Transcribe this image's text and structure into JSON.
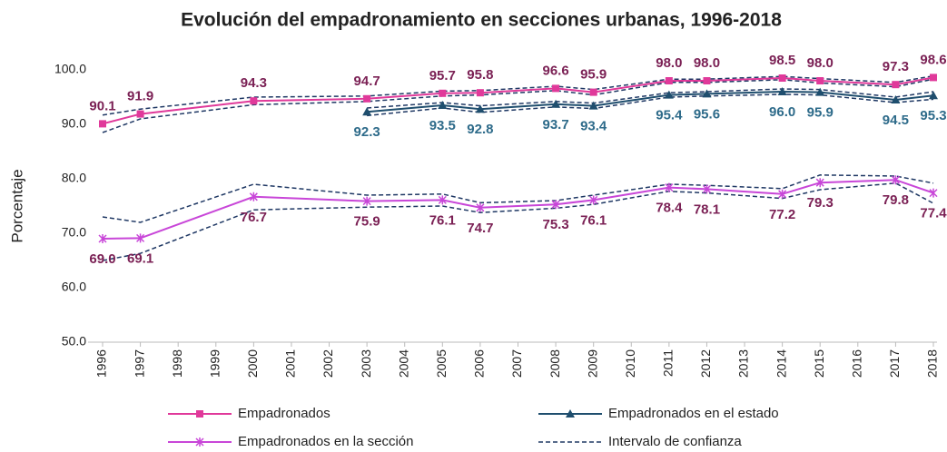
{
  "chart_data": {
    "type": "line",
    "title": "Evolución del empadronamiento en secciones urbanas, 1996‑2018",
    "y_label": "Porcentaje",
    "xlim": [
      1996,
      2018
    ],
    "xticks": [
      1996,
      1997,
      1998,
      1999,
      2000,
      2001,
      2002,
      2003,
      2004,
      2005,
      2006,
      2007,
      2008,
      2009,
      2010,
      2011,
      2012,
      2013,
      2014,
      2015,
      2016,
      2017,
      2018
    ],
    "ylim": [
      50,
      100
    ],
    "yticks": [
      {
        "value": 50,
        "label": "50.0"
      },
      {
        "value": 60,
        "label": "60.0"
      },
      {
        "value": 70,
        "label": "70.0"
      },
      {
        "value": 80,
        "label": "80.0"
      },
      {
        "value": 90,
        "label": "90.0"
      },
      {
        "value": 100,
        "label": "100.0"
      }
    ],
    "grid": false,
    "legend": "bottom",
    "series": [
      {
        "name": "Empadronados",
        "color": "#E0399A",
        "label_color": "#7B2155",
        "marker": "square",
        "label_position": "above",
        "x": [
          1996,
          1997,
          2000,
          2003,
          2005,
          2006,
          2008,
          2009,
          2011,
          2012,
          2014,
          2015,
          2017,
          2018
        ],
        "values": [
          90.1,
          91.9,
          94.3,
          94.7,
          95.7,
          95.8,
          96.6,
          95.9,
          98.0,
          98.0,
          98.5,
          98.0,
          97.3,
          98.6
        ],
        "value_labels": [
          "90.1",
          "91.9",
          "94.3",
          "94.7",
          "95.7",
          "95.8",
          "96.6",
          "95.9",
          "98.0",
          "98.0",
          "98.5",
          "98.0",
          "97.3",
          "98.6"
        ]
      },
      {
        "name": "Empadronados en el estado",
        "color": "#1F4E6E",
        "label_color": "#2E6B8A",
        "marker": "triangle",
        "label_position": "below",
        "x": [
          2003,
          2005,
          2006,
          2008,
          2009,
          2011,
          2012,
          2014,
          2015,
          2017,
          2018
        ],
        "values": [
          92.3,
          93.5,
          92.8,
          93.7,
          93.4,
          95.4,
          95.6,
          96.0,
          95.9,
          94.5,
          95.3
        ],
        "value_labels": [
          "92.3",
          "93.5",
          "92.8",
          "93.7",
          "93.4",
          "95.4",
          "95.6",
          "96.0",
          "95.9",
          "94.5",
          "95.3"
        ]
      },
      {
        "name": "Empadronados en la sección",
        "color": "#C846D8",
        "label_color": "#7B2155",
        "marker": "cross",
        "label_position": "below",
        "x": [
          1996,
          1997,
          2000,
          2003,
          2005,
          2006,
          2008,
          2009,
          2011,
          2012,
          2014,
          2015,
          2017,
          2018
        ],
        "values": [
          69.0,
          69.1,
          76.7,
          75.9,
          76.1,
          74.7,
          75.3,
          76.1,
          78.4,
          78.1,
          77.2,
          79.3,
          79.8,
          77.4
        ],
        "value_labels": [
          "69.0",
          "69.1",
          "76.7",
          "75.9",
          "76.1",
          "74.7",
          "75.3",
          "76.1",
          "78.4",
          "78.1",
          "77.2",
          "79.3",
          "79.8",
          "77.4"
        ]
      }
    ],
    "confidence_interval": {
      "name": "Intervalo de confianza",
      "color": "#1F3864",
      "bands": [
        {
          "x": [
            1996,
            1997,
            2000,
            2003,
            2005,
            2006,
            2008,
            2009,
            2011,
            2012,
            2014,
            2015,
            2017,
            2018
          ],
          "upper": [
            91.7,
            92.8,
            95.0,
            95.2,
            96.1,
            96.2,
            97.0,
            96.4,
            98.3,
            98.3,
            98.8,
            98.4,
            97.7,
            98.9
          ],
          "lower": [
            88.5,
            91.0,
            93.6,
            94.2,
            95.2,
            95.4,
            96.2,
            95.4,
            97.7,
            97.7,
            98.2,
            97.6,
            96.9,
            98.3
          ]
        },
        {
          "x": [
            2003,
            2005,
            2006,
            2008,
            2009,
            2011,
            2012,
            2014,
            2015,
            2017,
            2018
          ],
          "upper": [
            93.0,
            94.0,
            93.4,
            94.2,
            93.9,
            95.8,
            96.0,
            96.5,
            96.4,
            95.0,
            96.0
          ],
          "lower": [
            91.6,
            93.0,
            92.2,
            93.2,
            92.9,
            95.0,
            95.2,
            95.5,
            95.4,
            94.0,
            94.6
          ]
        },
        {
          "x": [
            1996,
            1997,
            2000,
            2003,
            2005,
            2006,
            2008,
            2009,
            2011,
            2012,
            2014,
            2015,
            2017,
            2018
          ],
          "upper": [
            73.0,
            72.0,
            79.0,
            77.0,
            77.2,
            75.6,
            76.0,
            77.0,
            79.0,
            78.8,
            78.2,
            80.7,
            80.5,
            79.2
          ],
          "lower": [
            65.0,
            66.3,
            74.3,
            74.8,
            75.0,
            73.8,
            74.6,
            75.3,
            77.7,
            77.4,
            76.4,
            78.0,
            79.2,
            75.5
          ]
        }
      ]
    }
  }
}
